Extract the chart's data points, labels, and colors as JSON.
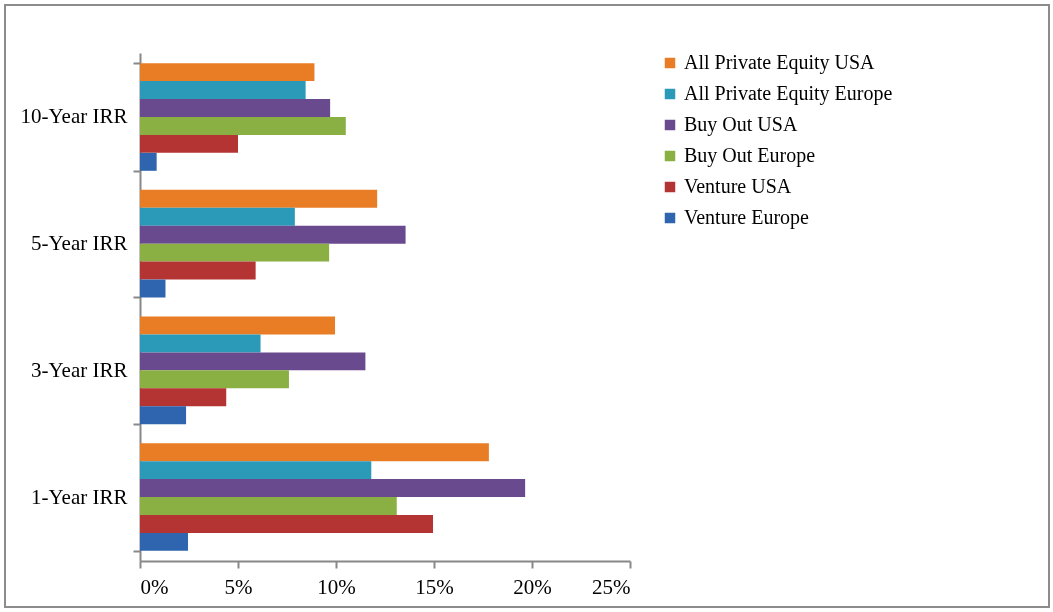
{
  "chart_data": {
    "type": "bar",
    "orientation": "horizontal",
    "categories": [
      "10-Year IRR",
      "5-Year IRR",
      "3-Year IRR",
      "1-Year IRR"
    ],
    "series": [
      {
        "name": "All Private Equity USA",
        "color": "#e87d26",
        "values": [
          8.9,
          12.1,
          9.95,
          17.8
        ]
      },
      {
        "name": "All Private Equity Europe",
        "color": "#2a9ab8",
        "values": [
          8.45,
          7.9,
          6.15,
          11.8
        ]
      },
      {
        "name": "Buy Out USA",
        "color": "#6a4a8e",
        "values": [
          9.7,
          13.55,
          11.5,
          19.65
        ]
      },
      {
        "name": "Buy Out Europe",
        "color": "#8ab043",
        "values": [
          10.5,
          9.65,
          7.6,
          13.1
        ]
      },
      {
        "name": "Venture USA",
        "color": "#b33432",
        "values": [
          5.0,
          5.9,
          4.4,
          14.95
        ]
      },
      {
        "name": "Venture Europe",
        "color": "#2e65ae",
        "values": [
          0.85,
          1.3,
          2.35,
          2.45
        ]
      }
    ],
    "xlim": [
      0,
      25
    ],
    "xticks": [
      {
        "value": 0,
        "label": "0%"
      },
      {
        "value": 5,
        "label": "5%"
      },
      {
        "value": 10,
        "label": "10%"
      },
      {
        "value": 15,
        "label": "15%"
      },
      {
        "value": 20,
        "label": "20%"
      },
      {
        "value": 25,
        "label": "25%"
      }
    ],
    "grid": false,
    "legend": "right"
  }
}
